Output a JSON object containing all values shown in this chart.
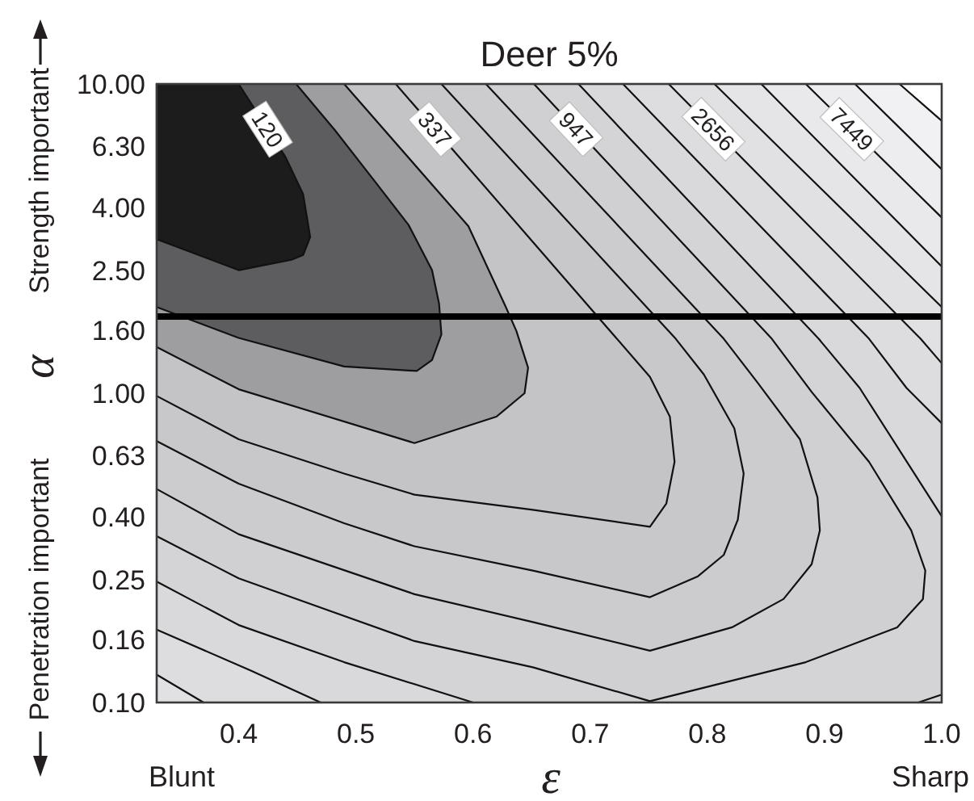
{
  "chart_data": {
    "type": "line",
    "title": "Deer 5%",
    "xlabel": "ε",
    "ylabel": "α",
    "annotations": [
      "Strength important",
      "Penetration important",
      "Blunt",
      "Sharp"
    ],
    "xlim": [
      0.33,
      1
    ],
    "xticks": [
      0.4,
      0.5,
      0.6,
      0.7,
      0.8,
      0.9,
      {
        "value": 1,
        "label": "1.0"
      }
    ],
    "ylim": [
      0.1,
      10
    ],
    "yticks": [
      {
        "value": 0.1,
        "label": "0.10"
      },
      0.16,
      0.25,
      {
        "value": 0.4,
        "label": "0.40"
      },
      0.63,
      {
        "value": 1,
        "label": "1.00"
      },
      {
        "value": 1.6,
        "label": "1.60"
      },
      {
        "value": 2.5,
        "label": "2.50"
      },
      {
        "value": 4,
        "label": "4.00"
      },
      {
        "value": 6.3,
        "label": "6.30"
      },
      {
        "value": 10,
        "label": "10.00"
      }
    ],
    "log": "y",
    "ref_lines": [
      {
        "axis": "y",
        "value": 1.77,
        "color": "#000000"
      }
    ],
    "series": [
      {
        "color": "#111111",
        "x": [
          0.964,
          1
        ],
        "values": [
          10,
          7.6
        ]
      },
      {
        "color": "#111111",
        "x": [
          0.926,
          1
        ],
        "values": [
          10,
          5.3
        ]
      },
      {
        "name": "7449",
        "color": "#111111",
        "x": [
          0.884,
          1
        ],
        "values": [
          10,
          3.7
        ]
      },
      {
        "color": "#111111",
        "x": [
          0.846,
          1
        ],
        "values": [
          10,
          2.57
        ]
      },
      {
        "color": "#111111",
        "x": [
          0.806,
          1
        ],
        "values": [
          10,
          1.9
        ]
      },
      {
        "name": "2656",
        "color": "#111111",
        "x": [
          0.767,
          0.982,
          1,
          null,
          0.37,
          0.33
        ],
        "values": [
          10,
          1.5,
          1.25,
          null,
          0.1,
          0.123
        ]
      },
      {
        "color": "#111111",
        "x": [
          0.728,
          0.938,
          0.97,
          1,
          null,
          0.47,
          0.41,
          0.33
        ],
        "values": [
          10,
          1.5,
          1.04,
          0.8,
          null,
          0.1,
          0.127,
          0.172
        ]
      },
      {
        "color": "#111111",
        "x": [
          0.69,
          0.895,
          0.93,
          1,
          null,
          1,
          0.98,
          null,
          0.6,
          0.49,
          0.4,
          0.33
        ],
        "values": [
          10,
          1.5,
          1.04,
          0.4,
          null,
          0.106,
          0.1,
          null,
          0.1,
          0.135,
          0.178,
          0.246
        ]
      },
      {
        "name": "947",
        "color": "#111111",
        "x": [
          0.652,
          0.855,
          0.889,
          0.938,
          0.974,
          0.986,
          0.984,
          0.962,
          0.884,
          0.751,
          0.651,
          0.55,
          0.4,
          0.33
        ],
        "values": [
          10,
          1.5,
          1.01,
          0.6,
          0.36,
          0.267,
          0.216,
          0.175,
          0.135,
          0.101,
          0.13,
          0.158,
          0.252,
          0.345
        ]
      },
      {
        "color": "#111111",
        "x": [
          0.611,
          0.814,
          0.843,
          0.879,
          0.894,
          0.896,
          0.889,
          0.865,
          0.821,
          0.751,
          0.651,
          0.55,
          0.4,
          0.33
        ],
        "values": [
          10,
          1.5,
          1.08,
          0.71,
          0.46,
          0.36,
          0.28,
          0.216,
          0.175,
          0.147,
          0.182,
          0.224,
          0.35,
          0.49
        ]
      },
      {
        "color": "#111111",
        "x": [
          0.573,
          0.773,
          0.797,
          0.823,
          0.831,
          0.826,
          0.814,
          0.792,
          0.751,
          0.651,
          0.55,
          0.49,
          0.4,
          0.33
        ],
        "values": [
          10,
          1.5,
          1.15,
          0.77,
          0.55,
          0.39,
          0.3,
          0.256,
          0.219,
          0.267,
          0.32,
          0.38,
          0.51,
          0.7
        ]
      },
      {
        "name": "337",
        "color": "#111111",
        "x": [
          0.534,
          0.751,
          0.768,
          0.772,
          0.765,
          0.751,
          0.651,
          0.55,
          0.49,
          0.4,
          0.33
        ],
        "values": [
          10,
          1.13,
          0.84,
          0.6,
          0.44,
          0.37,
          0.42,
          0.47,
          0.55,
          0.71,
          0.98
        ]
      },
      {
        "color": "#111111",
        "x": [
          0.49,
          0.596,
          0.628,
          0.637,
          0.647,
          0.644,
          0.62,
          0.55,
          0.4,
          0.33
        ],
        "values": [
          10,
          3.47,
          1.9,
          1.59,
          1.21,
          1.0,
          0.84,
          0.69,
          1.03,
          1.41
        ]
      },
      {
        "color": "#111111",
        "x": [
          0.449,
          0.482,
          0.517,
          0.545,
          0.565,
          0.571,
          0.573,
          0.565,
          0.552,
          0.49,
          0.4,
          0.33
        ],
        "values": [
          10,
          7.1,
          4.8,
          3.5,
          2.5,
          1.95,
          1.55,
          1.28,
          1.18,
          1.22,
          1.51,
          1.9
        ]
      },
      {
        "name": "120",
        "type": "area",
        "color": "#1c1c1c",
        "x": [
          0.4,
          0.44,
          0.455,
          0.461,
          0.455,
          0.445,
          0.4,
          0.33,
          0.33
        ],
        "values": [
          10,
          5.8,
          4.4,
          3.2,
          2.8,
          2.7,
          2.5,
          3.15,
          10
        ]
      }
    ]
  }
}
